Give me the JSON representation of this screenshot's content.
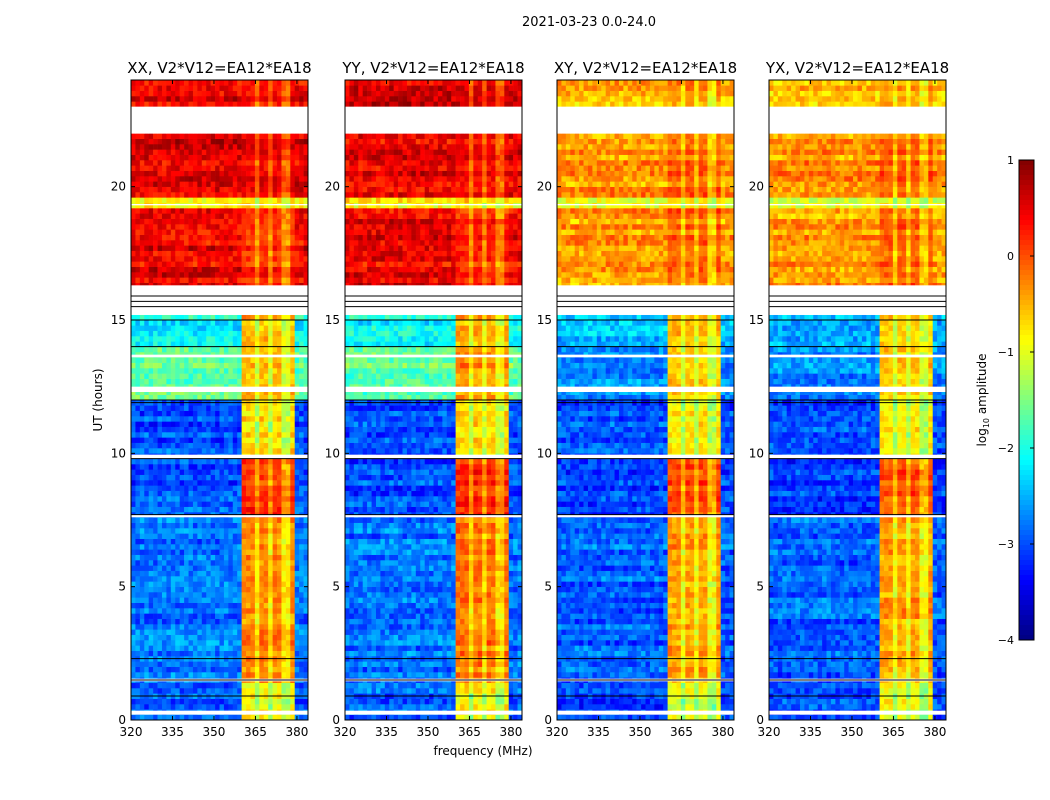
{
  "chart_data": {
    "type": "heatmap",
    "title": "2021-03-23 0.0-24.0",
    "xlabel": "frequency (MHz)",
    "ylabel": "UT (hours)",
    "xlim": [
      320,
      384
    ],
    "ylim": [
      0,
      24
    ],
    "xticks": [
      320,
      335,
      350,
      365,
      380
    ],
    "yticks": [
      0,
      5,
      10,
      15,
      20
    ],
    "colorbar": {
      "label": "log10 amplitude",
      "label_main": "log",
      "label_sub": "10",
      "label_rest": " amplitude",
      "range": [
        -4,
        1
      ],
      "ticks": [
        1,
        0,
        -1,
        -2,
        -3,
        -4
      ],
      "tick_labels": [
        "1",
        "0",
        "−1",
        "−2",
        "−3",
        "−4"
      ],
      "colormap": "jet"
    },
    "rfi_band_mhz": [
      360,
      379
    ],
    "rfi_gaps_mhz": [
      [
        365,
        366.5
      ],
      [
        370,
        371.5
      ],
      [
        375,
        376.5
      ]
    ],
    "flagged_hours": [
      [
        15.3,
        16.3
      ],
      [
        22.0,
        23.0
      ],
      [
        0.2,
        0.35
      ],
      [
        12.3,
        12.5
      ],
      [
        13.6,
        13.7
      ],
      [
        9.8,
        9.95
      ],
      [
        7.6,
        7.7
      ],
      [
        1.45,
        1.55
      ],
      [
        19.3,
        19.35
      ]
    ],
    "dark_line_hours": [
      0.9,
      1.5,
      2.3,
      7.7,
      9.8,
      11.9,
      12.0,
      14.0,
      15.0,
      15.5,
      15.7,
      15.9
    ],
    "panels": [
      {
        "title": "XX, V2*V12=EA12*EA18",
        "segments": [
          [
            0,
            1.5,
            -2.9,
            -0.8
          ],
          [
            1.5,
            7.6,
            -2.8,
            -0.3
          ],
          [
            7.6,
            9.8,
            -3.0,
            0.1
          ],
          [
            9.8,
            12,
            -3.0,
            -0.7
          ],
          [
            12,
            14,
            -1.6,
            -0.5
          ],
          [
            14,
            15.3,
            -2.1,
            -0.5
          ],
          [
            16.3,
            19.3,
            0.45,
            0.2
          ],
          [
            19.3,
            19.7,
            -0.8,
            -0.6
          ],
          [
            19.7,
            22,
            0.5,
            0.45
          ],
          [
            23,
            24,
            0.5,
            0.45
          ]
        ]
      },
      {
        "title": "YY, V2*V12=EA12*EA18",
        "segments": [
          [
            0,
            1.5,
            -2.9,
            -0.8
          ],
          [
            1.5,
            7.6,
            -2.8,
            -0.2
          ],
          [
            7.6,
            9.8,
            -3.0,
            0.2
          ],
          [
            9.8,
            12,
            -3.0,
            -0.7
          ],
          [
            12,
            14,
            -1.6,
            -0.3
          ],
          [
            14,
            15.3,
            -2.1,
            -0.5
          ],
          [
            16.3,
            19.3,
            0.45,
            0.2
          ],
          [
            19.3,
            19.7,
            -0.8,
            -0.6
          ],
          [
            19.7,
            22,
            0.5,
            0.45
          ],
          [
            23,
            24,
            0.5,
            0.45
          ]
        ]
      },
      {
        "title": "XY, V2*V12=EA12*EA18",
        "segments": [
          [
            0,
            1.5,
            -3.0,
            -0.9
          ],
          [
            1.5,
            7.6,
            -2.9,
            -0.4
          ],
          [
            7.6,
            9.8,
            -3.1,
            0.0
          ],
          [
            9.8,
            12,
            -3.0,
            -0.8
          ],
          [
            12,
            14,
            -2.7,
            -0.6
          ],
          [
            14,
            15.3,
            -2.5,
            -0.6
          ],
          [
            16.3,
            19.3,
            -0.4,
            -0.1
          ],
          [
            19.3,
            19.7,
            -1.0,
            -0.8
          ],
          [
            19.7,
            22,
            -0.35,
            -0.1
          ],
          [
            23,
            24,
            -0.5,
            -0.3
          ]
        ]
      },
      {
        "title": "YX, V2*V12=EA12*EA18",
        "segments": [
          [
            0,
            1.5,
            -3.0,
            -0.9
          ],
          [
            1.5,
            7.6,
            -2.9,
            -0.4
          ],
          [
            7.6,
            9.8,
            -3.1,
            0.0
          ],
          [
            9.8,
            12,
            -3.0,
            -0.8
          ],
          [
            12,
            14,
            -2.7,
            -0.6
          ],
          [
            14,
            15.3,
            -2.5,
            -0.6
          ],
          [
            16.3,
            19.3,
            -0.4,
            -0.1
          ],
          [
            19.3,
            19.7,
            -1.0,
            -0.8
          ],
          [
            19.7,
            22,
            -0.35,
            -0.1
          ],
          [
            23,
            24,
            -0.5,
            -0.3
          ]
        ]
      }
    ]
  }
}
